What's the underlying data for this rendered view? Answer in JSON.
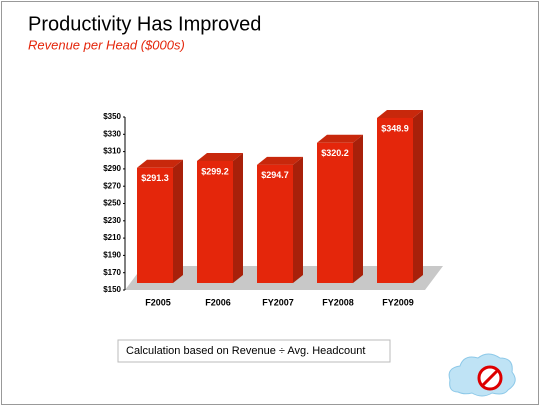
{
  "chart_data": {
    "type": "bar",
    "title": "Productivity Has Improved",
    "subtitle": "Revenue per Head ($000s)",
    "categories": [
      "F2005",
      "F2006",
      "FY2007",
      "FY2008",
      "FY2009"
    ],
    "values": [
      291.3,
      299.2,
      294.7,
      320.2,
      348.9
    ],
    "value_labels": [
      "$291.3",
      "$299.2",
      "$294.7",
      "$320.2",
      "$348.9"
    ],
    "color": "#e4260b",
    "ylim": [
      150,
      350
    ],
    "yticks": [
      {
        "value": 150,
        "label": "$150"
      },
      {
        "value": 170,
        "label": "$170"
      },
      {
        "value": 190,
        "label": "$190"
      },
      {
        "value": 210,
        "label": "$210"
      },
      {
        "value": 230,
        "label": "$230"
      },
      {
        "value": 250,
        "label": "$250"
      },
      {
        "value": 270,
        "label": "$270"
      },
      {
        "value": 290,
        "label": "$290"
      },
      {
        "value": 310,
        "label": "$310"
      },
      {
        "value": 330,
        "label": "$330"
      },
      {
        "value": 350,
        "label": "$350"
      }
    ],
    "annotation": "Calculation based on Revenue ÷ Avg. Headcount"
  }
}
